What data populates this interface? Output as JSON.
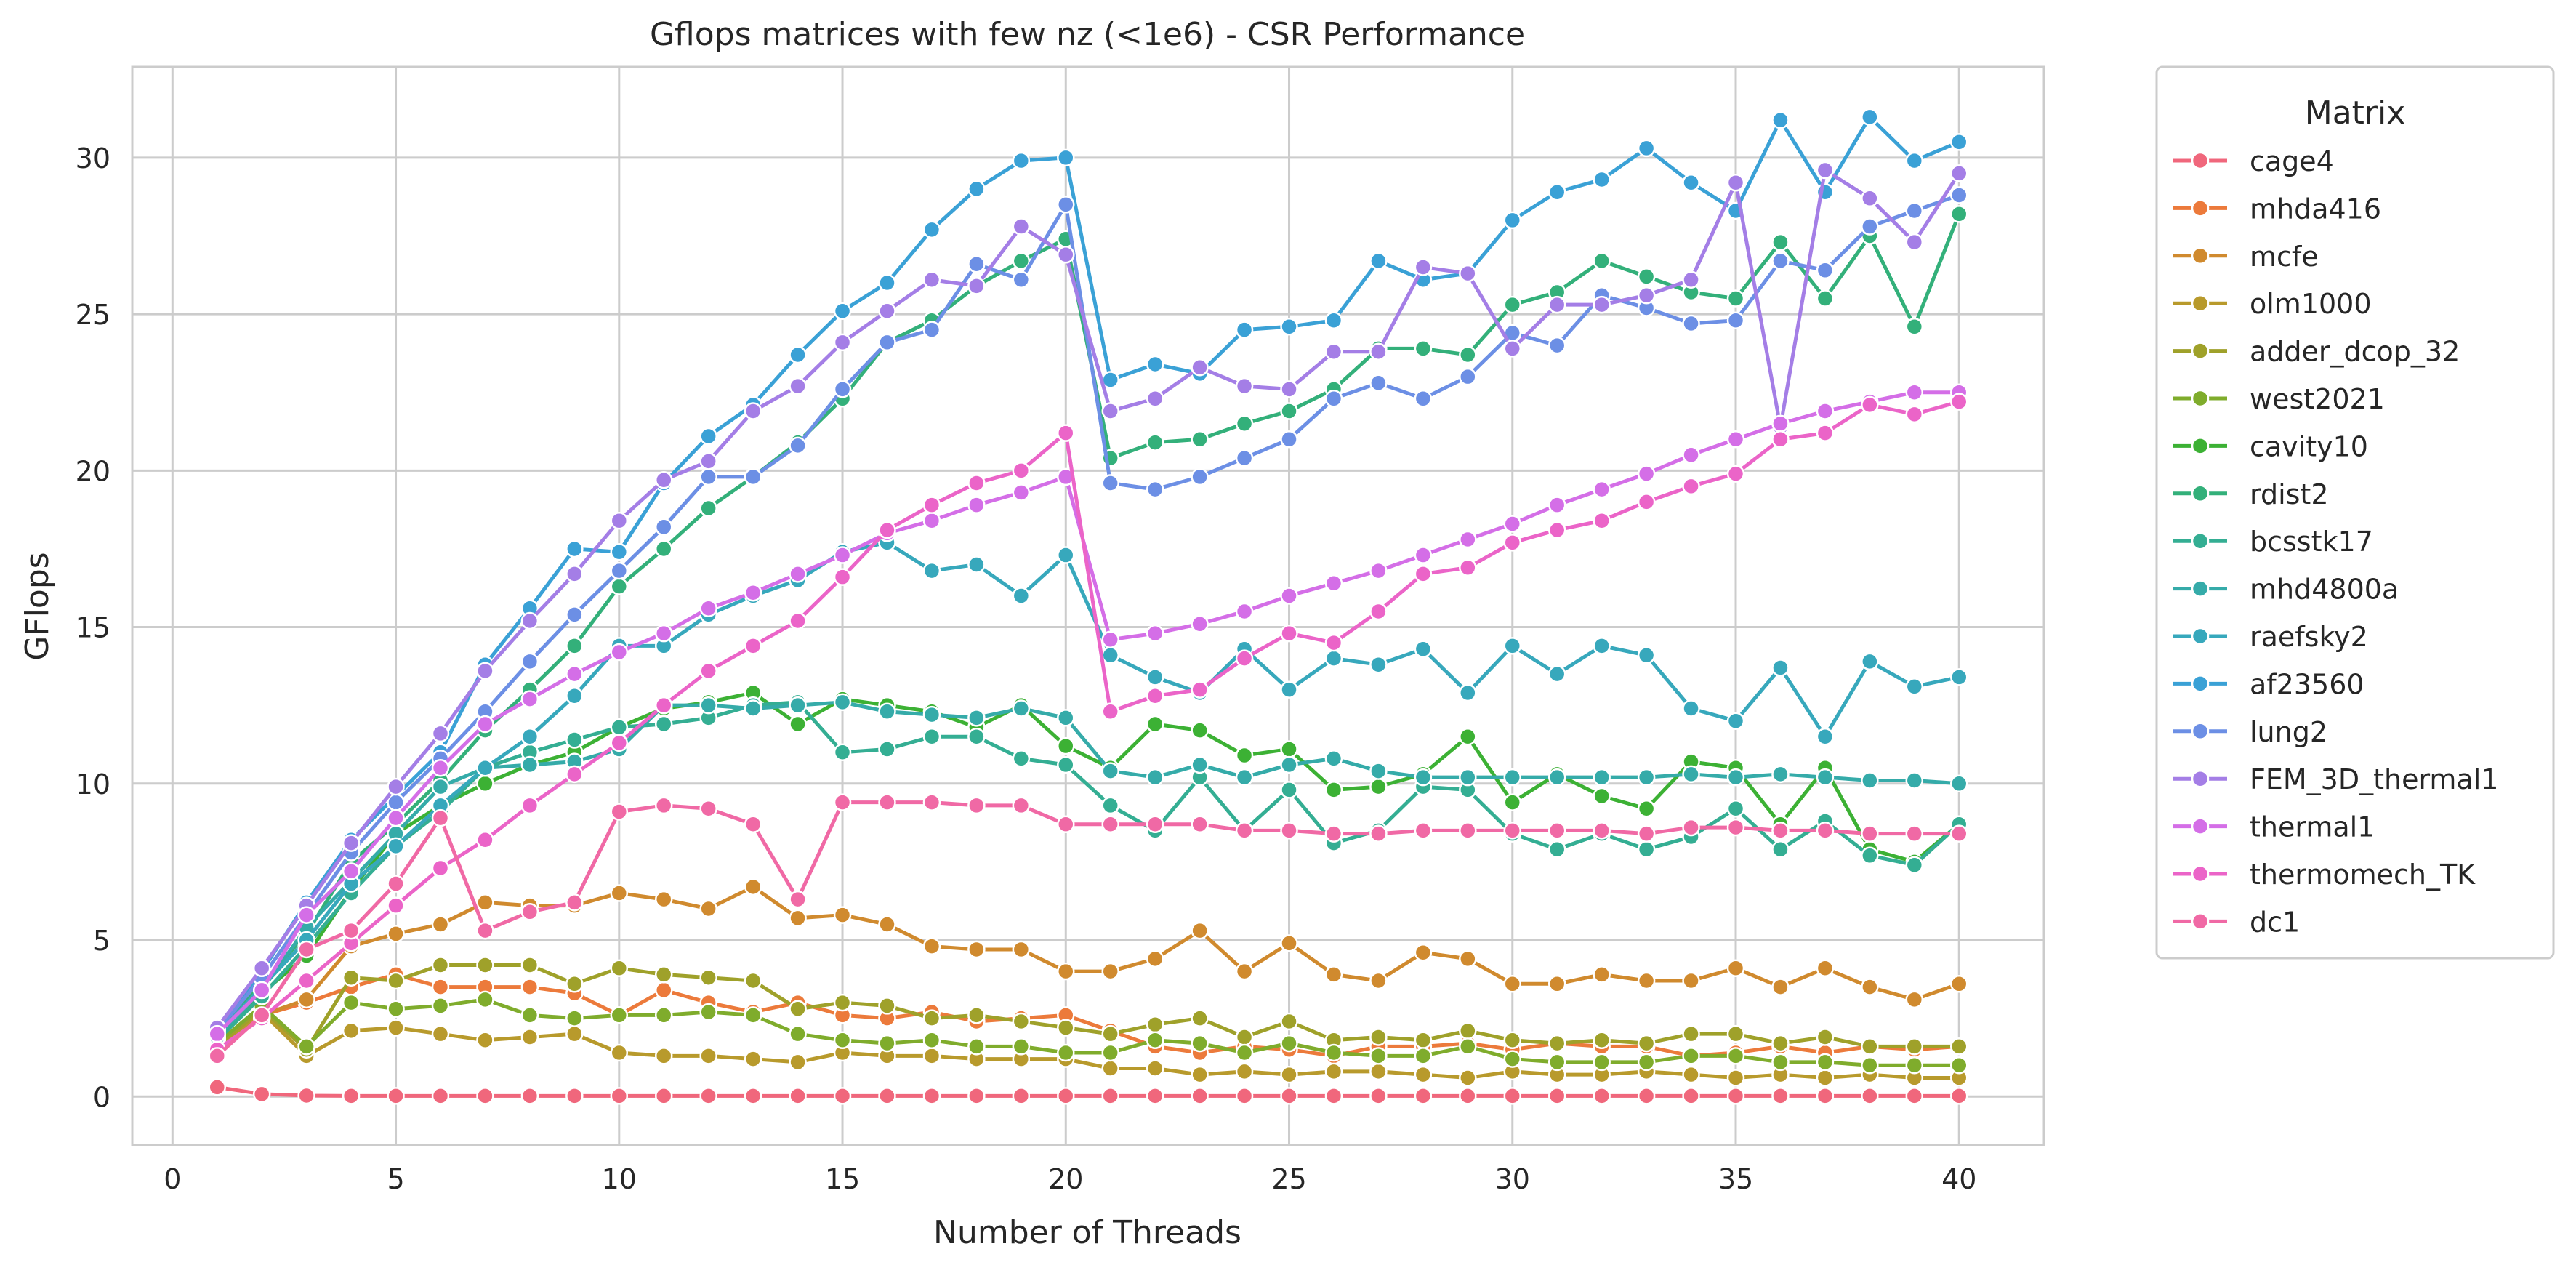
{
  "chart_data": {
    "type": "line",
    "title": "Gflops matrices with few nz (<1e6) - CSR Performance",
    "xlabel": "Number of Threads",
    "ylabel": "GFlops",
    "xlim": [
      -0.9,
      41.9
    ],
    "ylim": [
      -1.55,
      32.9
    ],
    "x_ticks": [
      0,
      5,
      10,
      15,
      20,
      25,
      30,
      35,
      40
    ],
    "y_ticks": [
      0,
      5,
      10,
      15,
      20,
      25,
      30
    ],
    "grid": true,
    "legend": {
      "title": "Matrix",
      "placement": "outside-right"
    },
    "x": [
      1,
      2,
      3,
      4,
      5,
      6,
      7,
      8,
      9,
      10,
      11,
      12,
      13,
      14,
      15,
      16,
      17,
      18,
      19,
      20,
      21,
      22,
      23,
      24,
      25,
      26,
      27,
      28,
      29,
      30,
      31,
      32,
      33,
      34,
      35,
      36,
      37,
      38,
      39,
      40
    ],
    "series": [
      {
        "name": "cage4",
        "color": "#f0677c",
        "values": [
          0.3,
          0.08,
          0.03,
          0.02,
          0.02,
          0.02,
          0.02,
          0.02,
          0.02,
          0.02,
          0.02,
          0.02,
          0.02,
          0.02,
          0.02,
          0.02,
          0.02,
          0.02,
          0.02,
          0.02,
          0.02,
          0.02,
          0.02,
          0.02,
          0.02,
          0.02,
          0.02,
          0.02,
          0.02,
          0.02,
          0.02,
          0.02,
          0.02,
          0.02,
          0.02,
          0.02,
          0.02,
          0.02,
          0.02,
          0.02
        ]
      },
      {
        "name": "mhda416",
        "color": "#ec7a3b",
        "values": [
          1.5,
          2.6,
          3.0,
          3.5,
          3.9,
          3.5,
          3.5,
          3.5,
          3.3,
          2.6,
          3.4,
          3.0,
          2.7,
          3.0,
          2.6,
          2.5,
          2.7,
          2.4,
          2.5,
          2.6,
          2.1,
          1.6,
          1.4,
          1.6,
          1.5,
          1.3,
          1.6,
          1.6,
          1.7,
          1.5,
          1.7,
          1.6,
          1.6,
          1.3,
          1.4,
          1.6,
          1.4,
          1.6,
          1.5,
          1.6
        ]
      },
      {
        "name": "mcfe",
        "color": "#d08a2e",
        "values": [
          1.8,
          2.6,
          3.1,
          4.8,
          5.2,
          5.5,
          6.2,
          6.1,
          6.1,
          6.5,
          6.3,
          6.0,
          6.7,
          5.7,
          5.8,
          5.5,
          4.8,
          4.7,
          4.7,
          4.0,
          4.0,
          4.4,
          5.3,
          4.0,
          4.9,
          3.9,
          3.7,
          4.6,
          4.4,
          3.6,
          3.6,
          3.9,
          3.7,
          3.7,
          4.1,
          3.5,
          4.1,
          3.5,
          3.1,
          3.6
        ]
      },
      {
        "name": "olm1000",
        "color": "#b89a2c",
        "values": [
          1.4,
          2.7,
          1.3,
          2.1,
          2.2,
          2.0,
          1.8,
          1.9,
          2.0,
          1.4,
          1.3,
          1.3,
          1.2,
          1.1,
          1.4,
          1.3,
          1.3,
          1.2,
          1.2,
          1.2,
          0.9,
          0.9,
          0.7,
          0.8,
          0.7,
          0.8,
          0.8,
          0.7,
          0.6,
          0.8,
          0.7,
          0.7,
          0.8,
          0.7,
          0.6,
          0.7,
          0.6,
          0.7,
          0.6,
          0.6
        ]
      },
      {
        "name": "adder_dcop_32",
        "color": "#9fa12a",
        "values": [
          1.6,
          2.8,
          1.5,
          3.8,
          3.7,
          4.2,
          4.2,
          4.2,
          3.6,
          4.1,
          3.9,
          3.8,
          3.7,
          2.8,
          3.0,
          2.9,
          2.5,
          2.6,
          2.4,
          2.2,
          2.0,
          2.3,
          2.5,
          1.9,
          2.4,
          1.8,
          1.9,
          1.8,
          2.1,
          1.8,
          1.7,
          1.8,
          1.7,
          2.0,
          2.0,
          1.7,
          1.9,
          1.6,
          1.6,
          1.6
        ]
      },
      {
        "name": "west2021",
        "color": "#7fac2c",
        "values": [
          1.7,
          2.9,
          1.6,
          3.0,
          2.8,
          2.9,
          3.1,
          2.6,
          2.5,
          2.6,
          2.6,
          2.7,
          2.6,
          2.0,
          1.8,
          1.7,
          1.8,
          1.6,
          1.6,
          1.4,
          1.4,
          1.8,
          1.7,
          1.4,
          1.7,
          1.4,
          1.3,
          1.3,
          1.6,
          1.2,
          1.1,
          1.1,
          1.1,
          1.3,
          1.3,
          1.1,
          1.1,
          1.0,
          1.0,
          1.0
        ]
      },
      {
        "name": "cavity10",
        "color": "#3cb134",
        "values": [
          1.9,
          3.3,
          4.5,
          6.6,
          8.4,
          9.3,
          10.0,
          10.6,
          11.0,
          11.8,
          12.4,
          12.6,
          12.9,
          11.9,
          12.7,
          12.5,
          12.3,
          11.8,
          12.5,
          11.2,
          10.5,
          11.9,
          11.7,
          10.9,
          11.1,
          9.8,
          9.9,
          10.3,
          11.5,
          9.4,
          10.3,
          9.6,
          9.2,
          10.7,
          10.5,
          8.7,
          10.5,
          7.9,
          7.5,
          8.7
        ]
      },
      {
        "name": "rdist2",
        "color": "#33b07a",
        "values": [
          2.0,
          3.6,
          5.2,
          7.5,
          8.7,
          10.1,
          11.7,
          13.0,
          14.4,
          16.3,
          17.5,
          18.8,
          19.8,
          20.9,
          22.3,
          24.1,
          24.8,
          25.9,
          26.7,
          27.4,
          20.4,
          20.9,
          21.0,
          21.5,
          21.9,
          22.6,
          23.9,
          23.9,
          23.7,
          25.3,
          25.7,
          26.7,
          26.2,
          25.7,
          25.5,
          27.3,
          25.5,
          27.5,
          24.6,
          28.2
        ]
      },
      {
        "name": "bcsstk17",
        "color": "#34ae93",
        "values": [
          1.8,
          3.2,
          4.8,
          6.5,
          8.0,
          9.1,
          10.5,
          11.0,
          11.4,
          11.8,
          11.9,
          12.1,
          12.5,
          12.6,
          11.0,
          11.1,
          11.5,
          11.5,
          10.8,
          10.6,
          9.3,
          8.5,
          10.2,
          8.5,
          9.8,
          8.1,
          8.5,
          9.9,
          9.8,
          8.4,
          7.9,
          8.4,
          7.9,
          8.3,
          9.2,
          7.9,
          8.8,
          7.7,
          7.4,
          8.7
        ]
      },
      {
        "name": "mhd4800a",
        "color": "#35aba9",
        "values": [
          1.9,
          3.4,
          5.4,
          6.9,
          8.4,
          9.9,
          10.5,
          10.6,
          10.7,
          11.1,
          12.5,
          12.5,
          12.4,
          12.5,
          12.6,
          12.3,
          12.2,
          12.1,
          12.4,
          12.1,
          10.4,
          10.2,
          10.6,
          10.2,
          10.6,
          10.8,
          10.4,
          10.2,
          10.2,
          10.2,
          10.2,
          10.2,
          10.2,
          10.3,
          10.2,
          10.3,
          10.2,
          10.1,
          10.1,
          10.0
        ]
      },
      {
        "name": "raefsky2",
        "color": "#37a8bc",
        "values": [
          2.0,
          3.5,
          5.0,
          6.8,
          8.0,
          9.3,
          10.5,
          11.5,
          12.8,
          14.4,
          14.4,
          15.4,
          16.0,
          16.5,
          17.4,
          17.7,
          16.8,
          17.0,
          16.0,
          17.3,
          14.1,
          13.4,
          12.9,
          14.3,
          13.0,
          14.0,
          13.8,
          14.3,
          12.9,
          14.4,
          13.5,
          14.4,
          14.1,
          12.4,
          12.0,
          13.7,
          11.5,
          13.9,
          13.1,
          13.4
        ]
      },
      {
        "name": "af23560",
        "color": "#3aa1d6",
        "values": [
          2.2,
          4.0,
          6.2,
          8.2,
          9.6,
          11.0,
          13.8,
          15.6,
          17.5,
          17.4,
          19.6,
          21.1,
          22.1,
          23.7,
          25.1,
          26.0,
          27.7,
          29.0,
          29.9,
          30.0,
          22.9,
          23.4,
          23.1,
          24.5,
          24.6,
          24.8,
          26.7,
          26.1,
          26.3,
          28.0,
          28.9,
          29.3,
          30.3,
          29.2,
          28.3,
          31.2,
          28.9,
          31.3,
          29.9,
          30.5
        ]
      },
      {
        "name": "lung2",
        "color": "#6c8fe5",
        "values": [
          2.1,
          3.8,
          5.8,
          7.8,
          9.4,
          10.8,
          12.3,
          13.9,
          15.4,
          16.8,
          18.2,
          19.8,
          19.8,
          20.8,
          22.6,
          24.1,
          24.5,
          26.6,
          26.1,
          28.5,
          19.6,
          19.4,
          19.8,
          20.4,
          21.0,
          22.3,
          22.8,
          22.3,
          23.0,
          24.4,
          24.0,
          25.6,
          25.2,
          24.7,
          24.8,
          26.7,
          26.4,
          27.8,
          28.3,
          28.8
        ]
      },
      {
        "name": "FEM_3D_thermal1",
        "color": "#a47ee6",
        "values": [
          2.2,
          4.1,
          6.1,
          8.1,
          9.9,
          11.6,
          13.6,
          15.2,
          16.7,
          18.4,
          19.7,
          20.3,
          21.9,
          22.7,
          24.1,
          25.1,
          26.1,
          25.9,
          27.8,
          26.9,
          21.9,
          22.3,
          23.3,
          22.7,
          22.6,
          23.8,
          23.8,
          26.5,
          26.3,
          23.9,
          25.3,
          25.3,
          25.6,
          26.1,
          29.2,
          21.4,
          29.6,
          28.7,
          27.3,
          29.5
        ]
      },
      {
        "name": "thermal1",
        "color": "#d46ee7",
        "values": [
          2.0,
          3.4,
          5.8,
          7.2,
          8.9,
          10.5,
          11.9,
          12.7,
          13.5,
          14.2,
          14.8,
          15.6,
          16.1,
          16.7,
          17.3,
          18.0,
          18.4,
          18.9,
          19.3,
          19.8,
          14.6,
          14.8,
          15.1,
          15.5,
          16.0,
          16.4,
          16.8,
          17.3,
          17.8,
          18.3,
          18.9,
          19.4,
          19.9,
          20.5,
          21.0,
          21.5,
          21.9,
          22.2,
          22.5,
          22.5
        ]
      },
      {
        "name": "thermomech_TK",
        "color": "#eb64c8",
        "values": [
          1.5,
          2.5,
          3.7,
          4.9,
          6.1,
          7.3,
          8.2,
          9.3,
          10.3,
          11.3,
          12.5,
          13.6,
          14.4,
          15.2,
          16.6,
          18.1,
          18.9,
          19.6,
          20.0,
          21.2,
          12.3,
          12.8,
          13.0,
          14.0,
          14.8,
          14.5,
          15.5,
          16.7,
          16.9,
          17.7,
          18.1,
          18.4,
          19.0,
          19.5,
          19.9,
          21.0,
          21.2,
          22.1,
          21.8,
          22.2
        ]
      },
      {
        "name": "dc1",
        "color": "#f069a5",
        "values": [
          1.3,
          2.6,
          4.7,
          5.3,
          6.8,
          8.9,
          5.3,
          5.9,
          6.2,
          9.1,
          9.3,
          9.2,
          8.7,
          6.3,
          9.4,
          9.4,
          9.4,
          9.3,
          9.3,
          8.7,
          8.7,
          8.7,
          8.7,
          8.5,
          8.5,
          8.4,
          8.4,
          8.5,
          8.5,
          8.5,
          8.5,
          8.5,
          8.4,
          8.6,
          8.6,
          8.5,
          8.5,
          8.4,
          8.4,
          8.4
        ]
      }
    ]
  }
}
